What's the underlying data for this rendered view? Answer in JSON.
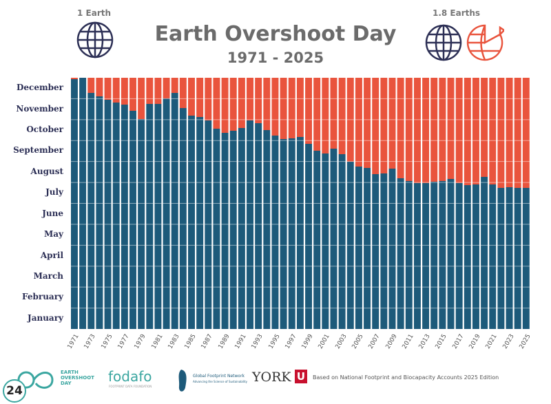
{
  "header": {
    "title": "Earth Overshoot Day",
    "subtitle": "1971 - 2025",
    "left_label": "1 Earth",
    "right_label": "1.8 Earths"
  },
  "colors": {
    "overshoot": "#e9543d",
    "within": "#1d5a7a",
    "globe": "#2c2f55",
    "globe_partial": "#e9543d"
  },
  "chart_data": {
    "type": "bar",
    "stacked": true,
    "title": "Earth Overshoot Day",
    "subtitle": "1971 - 2025",
    "y_unit": "day of year",
    "ylim": [
      0,
      365
    ],
    "y_tick_labels": [
      "January",
      "February",
      "March",
      "April",
      "May",
      "June",
      "July",
      "August",
      "September",
      "October",
      "November",
      "December"
    ],
    "x_tick_labels": [
      "1971",
      "1973",
      "1975",
      "1977",
      "1979",
      "1981",
      "1983",
      "1985",
      "1987",
      "1989",
      "1991",
      "1993",
      "1995",
      "1997",
      "1999",
      "2001",
      "2003",
      "2005",
      "2007",
      "2009",
      "2011",
      "2013",
      "2015",
      "2017",
      "2019",
      "2021",
      "2023",
      "2025"
    ],
    "x": [
      1971,
      1972,
      1973,
      1974,
      1975,
      1976,
      1977,
      1978,
      1979,
      1980,
      1981,
      1982,
      1983,
      1984,
      1985,
      1986,
      1987,
      1988,
      1989,
      1990,
      1991,
      1992,
      1993,
      1994,
      1995,
      1996,
      1997,
      1998,
      1999,
      2000,
      2001,
      2002,
      2003,
      2004,
      2005,
      2006,
      2007,
      2008,
      2009,
      2010,
      2011,
      2012,
      2013,
      2014,
      2015,
      2016,
      2017,
      2018,
      2019,
      2020,
      2021,
      2022,
      2023,
      2024,
      2025
    ],
    "values": [
      363,
      365,
      343,
      338,
      333,
      329,
      326,
      317,
      305,
      327,
      327,
      335,
      343,
      321,
      310,
      308,
      303,
      291,
      285,
      288,
      292,
      303,
      299,
      289,
      281,
      276,
      277,
      279,
      269,
      259,
      255,
      262,
      254,
      243,
      236,
      234,
      225,
      226,
      233,
      219,
      215,
      212,
      212,
      214,
      215,
      218,
      212,
      209,
      210,
      221,
      210,
      205,
      206,
      205,
      205
    ],
    "grid": true
  },
  "footer": {
    "logo1": [
      "EARTH",
      "OVERSHOOT",
      "DAY"
    ],
    "logo2": "fodafo",
    "logo2_sub": "FOOTPRINT DATA FOUNDATION",
    "logo3": "Global Footprint Network",
    "logo3_sub": "Advancing the Science of Sustainability",
    "logo4": "YORK",
    "logo4_mark": "U",
    "source": "Based on National Footprint and Biocapacity Accounts 2025 Edition",
    "badge": "24"
  }
}
